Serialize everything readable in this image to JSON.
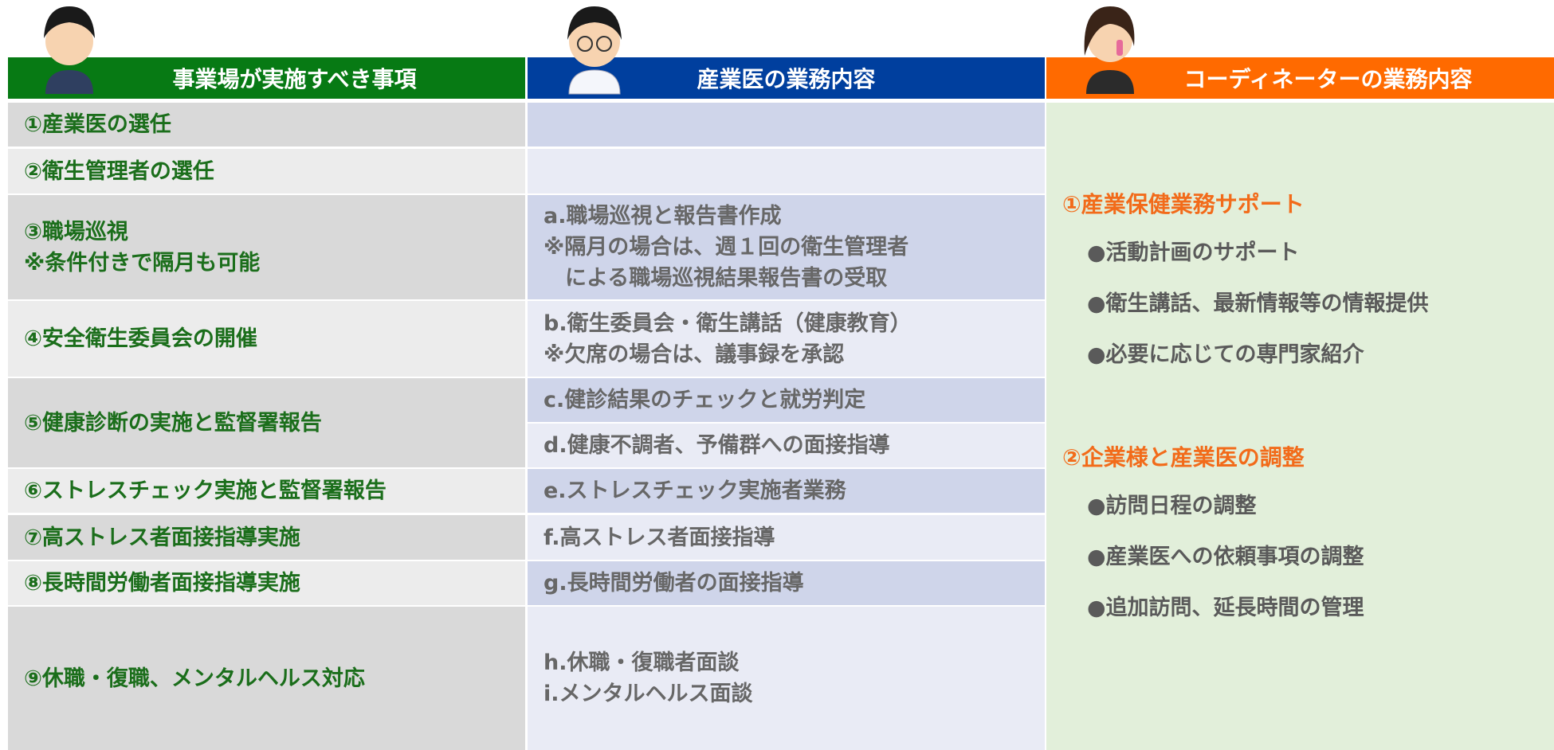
{
  "headers": [
    "事業場が実施すべき事項",
    "産業医の業務内容",
    "コーディネーターの業務内容"
  ],
  "rows": [
    {
      "item": [
        "①産業医の選任"
      ],
      "duties": []
    },
    {
      "item": [
        "②衛生管理者の選任"
      ],
      "duties": []
    },
    {
      "item": [
        "③職場巡視",
        "※条件付きで隔月も可能"
      ],
      "duties": [
        [
          "a.職場巡視と報告書作成",
          "※隔月の場合は、週１回の衛生管理者",
          "　による職場巡視結果報告書の受取"
        ]
      ]
    },
    {
      "item": [
        "④安全衛生委員会の開催"
      ],
      "duties": [
        [
          "b.衛生委員会・衛生講話（健康教育）",
          "※欠席の場合は、議事録を承認"
        ]
      ]
    },
    {
      "item": [
        "⑤健康診断の実施と監督署報告"
      ],
      "duties": [
        [
          "c.健診結果のチェックと就労判定"
        ],
        [
          "d.健康不調者、予備群への面接指導"
        ]
      ]
    },
    {
      "item": [
        "⑥ストレスチェック実施と監督署報告"
      ],
      "duties": [
        [
          "e.ストレスチェック実施者業務"
        ]
      ]
    },
    {
      "item": [
        "⑦高ストレス者面接指導実施"
      ],
      "duties": [
        [
          "f.高ストレス者面接指導"
        ]
      ]
    },
    {
      "item": [
        "⑧長時間労働者面接指導実施"
      ],
      "duties": [
        [
          "g.長時間労働者の面接指導"
        ]
      ]
    },
    {
      "item": [
        "⑨休職・復職、メンタルヘルス対応"
      ],
      "duties": [
        [
          "h.休職・復職者面談",
          "i.メンタルヘルス面談"
        ]
      ]
    }
  ],
  "coordinator": [
    {
      "title": "①産業保健業務サポート",
      "items": [
        "●活動計画のサポート",
        "●衛生講話、最新情報等の情報提供",
        "●必要に応じての専門家紹介"
      ]
    },
    {
      "title": "②企業様と産業医の調整",
      "items": [
        "●訪問日程の調整",
        "●産業医への依頼事項の調整",
        "●追加訪問、延長時間の管理"
      ]
    }
  ]
}
